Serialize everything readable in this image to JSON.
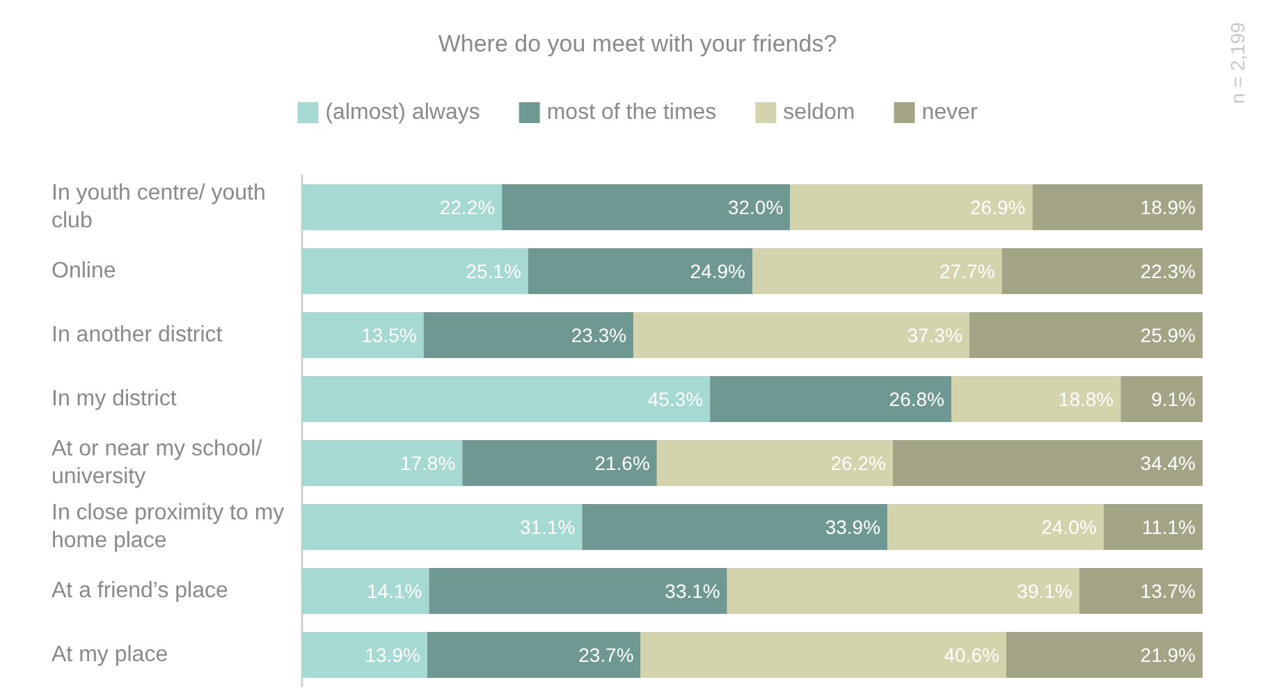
{
  "chart_data": {
    "type": "bar",
    "orientation": "horizontal",
    "stacked": true,
    "title": "Where do you meet with your friends?",
    "annotations": [
      "n = 2,199"
    ],
    "legend": "top",
    "tick_labels": "y",
    "grid": false,
    "xlim": [
      0,
      100
    ],
    "categories": [
      "In youth centre/ youth club",
      "Online",
      "In another district",
      "In my district",
      "At or near my school/ university",
      "In close proximity to my home place",
      "At a friend’s place",
      "At my place"
    ],
    "series": [
      {
        "name": "(almost) always",
        "color": "#a6d9d1",
        "values": [
          22.2,
          25.1,
          13.5,
          45.3,
          17.8,
          31.1,
          14.1,
          13.9
        ],
        "value_labels": [
          "22.2%",
          "25.1%",
          "13.5%",
          "45.3%",
          "17.8%",
          "31.1%",
          "14.1%",
          "13.9%"
        ]
      },
      {
        "name": "most of the times",
        "color": "#6f9893",
        "values": [
          32.0,
          24.9,
          23.3,
          26.8,
          21.6,
          33.9,
          33.1,
          23.7
        ],
        "value_labels": [
          "32.0%",
          "24.9%",
          "23.3%",
          "26.8%",
          "21.6%",
          "33.9%",
          "33.1%",
          "23.7%"
        ]
      },
      {
        "name": "seldom",
        "color": "#d3d3ae",
        "values": [
          26.9,
          27.7,
          37.3,
          18.8,
          26.2,
          24.0,
          39.1,
          40.6
        ],
        "value_labels": [
          "26.9%",
          "27.7%",
          "37.3%",
          "18.8%",
          "26.2%",
          "24.0%",
          "39.1%",
          "40.6%"
        ]
      },
      {
        "name": "never",
        "color": "#a3a386",
        "values": [
          18.9,
          22.3,
          25.9,
          9.1,
          34.4,
          11.1,
          13.7,
          21.9
        ],
        "value_labels": [
          "18.9%",
          "22.3%",
          "25.9%",
          "9.1%",
          "34.4%",
          "11.1%",
          "13.7%",
          "21.9%"
        ]
      }
    ]
  }
}
